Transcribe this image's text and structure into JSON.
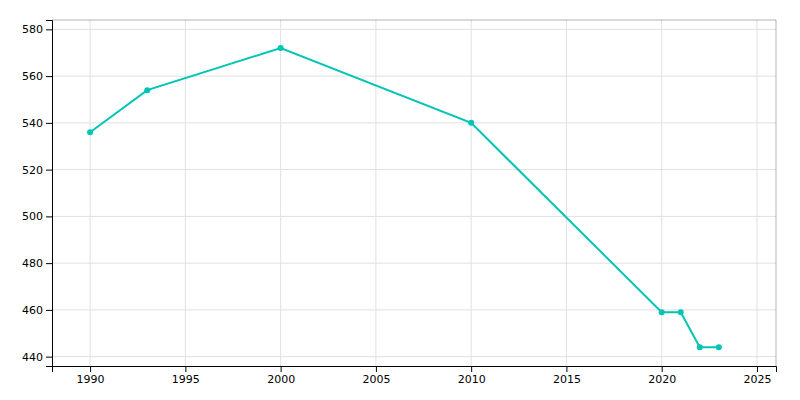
{
  "chart_data": {
    "type": "line",
    "x": [
      1990,
      1993,
      2000,
      2010,
      2020,
      2021,
      2022,
      2023
    ],
    "values": [
      536,
      554,
      572,
      540,
      459,
      459,
      444,
      444
    ],
    "color": "#00C5B5",
    "marker": "circle",
    "xlim": [
      1988,
      2026
    ],
    "ylim": [
      436,
      584
    ],
    "xticks": [
      1990,
      1995,
      2000,
      2005,
      2010,
      2015,
      2020,
      2025
    ],
    "yticks": [
      440,
      460,
      480,
      500,
      520,
      540,
      560,
      580
    ],
    "grid": true
  }
}
